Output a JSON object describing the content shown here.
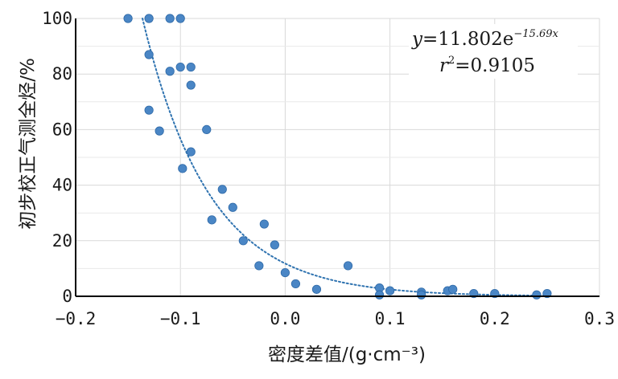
{
  "chart_data": {
    "type": "scatter",
    "xlabel": "密度差值/(g·cm⁻³)",
    "ylabel": "初步校正气测全烃/%",
    "xlim": [
      -0.2,
      0.3
    ],
    "ylim": [
      0,
      100
    ],
    "x_ticks": [
      "−0.2",
      "−0.1",
      "0.0",
      "0.1",
      "0.2",
      "0.3"
    ],
    "y_ticks": [
      "0",
      "20",
      "40",
      "60",
      "80",
      "100"
    ],
    "grid": true,
    "annotation": {
      "equation_lhs": "y",
      "equation_eq": "=11.802e",
      "equation_exp": "−15.69x",
      "r2_lhs": "r",
      "r2_sup": "2",
      "r2_value": "=0.9105"
    },
    "fit": {
      "type": "exponential",
      "a": 11.802,
      "b": -15.69
    },
    "points": [
      {
        "x": -0.15,
        "y": 100
      },
      {
        "x": -0.13,
        "y": 100
      },
      {
        "x": -0.11,
        "y": 100
      },
      {
        "x": -0.1,
        "y": 100
      },
      {
        "x": -0.13,
        "y": 87
      },
      {
        "x": -0.11,
        "y": 81
      },
      {
        "x": -0.1,
        "y": 82.5
      },
      {
        "x": -0.09,
        "y": 82.5
      },
      {
        "x": -0.09,
        "y": 76
      },
      {
        "x": -0.13,
        "y": 67
      },
      {
        "x": -0.12,
        "y": 59.5
      },
      {
        "x": -0.075,
        "y": 60
      },
      {
        "x": -0.09,
        "y": 52
      },
      {
        "x": -0.098,
        "y": 46
      },
      {
        "x": -0.06,
        "y": 38.5
      },
      {
        "x": -0.05,
        "y": 32
      },
      {
        "x": -0.07,
        "y": 27.5
      },
      {
        "x": -0.02,
        "y": 26
      },
      {
        "x": -0.04,
        "y": 20
      },
      {
        "x": -0.01,
        "y": 18.5
      },
      {
        "x": -0.025,
        "y": 11
      },
      {
        "x": 0.0,
        "y": 8.5
      },
      {
        "x": 0.01,
        "y": 4.5
      },
      {
        "x": 0.03,
        "y": 2.5
      },
      {
        "x": 0.06,
        "y": 11
      },
      {
        "x": 0.09,
        "y": 3
      },
      {
        "x": 0.09,
        "y": 0.5
      },
      {
        "x": 0.1,
        "y": 2
      },
      {
        "x": 0.13,
        "y": 1.5
      },
      {
        "x": 0.13,
        "y": 0.5
      },
      {
        "x": 0.155,
        "y": 2
      },
      {
        "x": 0.16,
        "y": 2.5
      },
      {
        "x": 0.18,
        "y": 1
      },
      {
        "x": 0.2,
        "y": 1
      },
      {
        "x": 0.24,
        "y": 0.5
      },
      {
        "x": 0.25,
        "y": 1
      }
    ],
    "colors": {
      "points": "#4a86c5",
      "point_stroke": "#2f6aa8",
      "fit_line": "#2f73b0",
      "grid": "#d9d9d9",
      "axis": "#000000"
    }
  }
}
